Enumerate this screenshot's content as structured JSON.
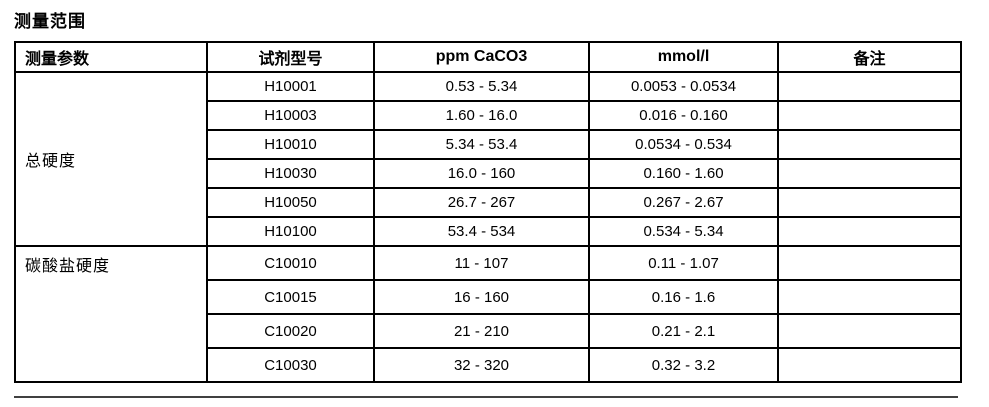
{
  "page": {
    "title": "测量范围"
  },
  "table": {
    "headers": [
      "测量参数",
      "试剂型号",
      "ppm CaCO3",
      "mmol/l",
      "备注"
    ],
    "groups": [
      {
        "parameter": "总硬度",
        "rows": [
          {
            "model": "H10001",
            "ppm": "0.53 - 5.34",
            "mmol": "0.0053 - 0.0534",
            "note": ""
          },
          {
            "model": "H10003",
            "ppm": "1.60 - 16.0",
            "mmol": "0.016 - 0.160",
            "note": ""
          },
          {
            "model": "H10010",
            "ppm": "5.34 - 53.4",
            "mmol": "0.0534 - 0.534",
            "note": ""
          },
          {
            "model": "H10030",
            "ppm": "16.0 - 160",
            "mmol": "0.160 - 1.60",
            "note": ""
          },
          {
            "model": "H10050",
            "ppm": "26.7 - 267",
            "mmol": "0.267 - 2.67",
            "note": ""
          },
          {
            "model": "H10100",
            "ppm": "53.4 - 534",
            "mmol": "0.534 - 5.34",
            "note": ""
          }
        ]
      },
      {
        "parameter": "碳酸盐硬度",
        "rows": [
          {
            "model": "C10010",
            "ppm": "11 - 107",
            "mmol": "0.11 - 1.07",
            "note": ""
          },
          {
            "model": "C10015",
            "ppm": "16 - 160",
            "mmol": "0.16 - 1.6",
            "note": ""
          },
          {
            "model": "C10020",
            "ppm": "21 - 210",
            "mmol": "0.21 - 2.1",
            "note": ""
          },
          {
            "model": "C10030",
            "ppm": "32 - 320",
            "mmol": "0.32 - 3.2",
            "note": ""
          }
        ]
      }
    ]
  },
  "colors": {
    "border": "#000000",
    "text": "#000000",
    "bottom_rule": "#404040",
    "background": "#ffffff"
  }
}
